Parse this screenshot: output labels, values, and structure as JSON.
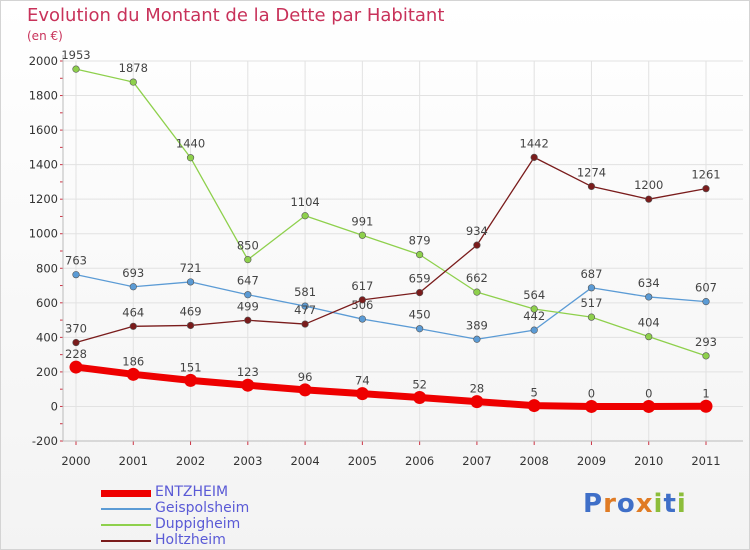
{
  "title": "Evolution du Montant de la Dette par Habitant",
  "unit": "(en €)",
  "logo": {
    "text": "Proxiti"
  },
  "chart_data": {
    "type": "line",
    "title": "Evolution du Montant de la Dette par Habitant",
    "ylabel": "(en €)",
    "xlabel": "",
    "x": [
      "2000",
      "2001",
      "2002",
      "2003",
      "2004",
      "2005",
      "2006",
      "2007",
      "2008",
      "2009",
      "2010",
      "2011"
    ],
    "ylim": [
      -200,
      2000
    ],
    "yticks": [
      "-200",
      "0",
      "200",
      "400",
      "600",
      "800",
      "1000",
      "1200",
      "1400",
      "1600",
      "1800",
      "2000"
    ],
    "grid": true,
    "legend": "bottom-left",
    "series": [
      {
        "name": "ENTZHEIM",
        "color": "#ee0000",
        "values": [
          228,
          186,
          151,
          123,
          96,
          74,
          52,
          28,
          5,
          0,
          0,
          1
        ],
        "labels": [
          "228",
          "186",
          "151",
          "123",
          "96",
          "74",
          "52",
          "28",
          "5",
          "0",
          "0",
          "1"
        ]
      },
      {
        "name": "Geispolsheim",
        "color": "#5b9bd5",
        "values": [
          763,
          693,
          721,
          647,
          581,
          506,
          450,
          389,
          442,
          687,
          634,
          607
        ],
        "labels": [
          "763",
          "693",
          "721",
          "647",
          "581",
          "506",
          "450",
          "389",
          "442",
          "687",
          "634",
          "607"
        ]
      },
      {
        "name": "Duppigheim",
        "color": "#8ed04c",
        "values": [
          1953,
          1878,
          1440,
          850,
          1104,
          991,
          879,
          662,
          564,
          517,
          404,
          293
        ],
        "labels": [
          "1953",
          "1878",
          "1440",
          "850",
          "1104",
          "991",
          "879",
          "662",
          "564",
          "517",
          "404",
          "293"
        ]
      },
      {
        "name": "Holtzheim",
        "color": "#7a1c1c",
        "values": [
          370,
          464,
          469,
          499,
          477,
          617,
          659,
          934,
          1442,
          1274,
          1200,
          1261
        ],
        "labels": [
          "370",
          "464",
          "469",
          "499",
          "477",
          "617",
          "659",
          "934",
          "1442",
          "1274",
          "1200",
          "1261"
        ]
      }
    ]
  }
}
